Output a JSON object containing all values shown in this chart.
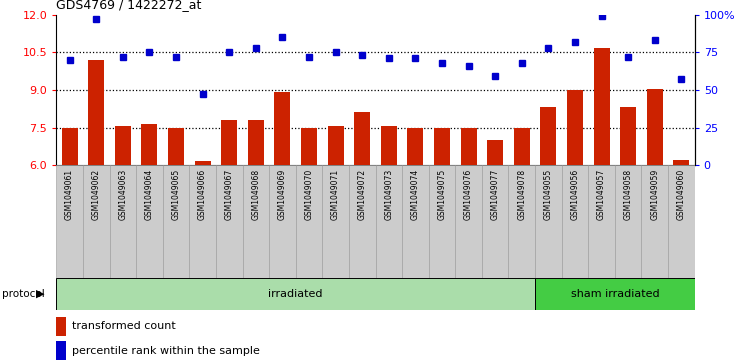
{
  "title": "GDS4769 / 1422272_at",
  "samples": [
    "GSM1049061",
    "GSM1049062",
    "GSM1049063",
    "GSM1049064",
    "GSM1049065",
    "GSM1049066",
    "GSM1049067",
    "GSM1049068",
    "GSM1049069",
    "GSM1049070",
    "GSM1049071",
    "GSM1049072",
    "GSM1049073",
    "GSM1049074",
    "GSM1049075",
    "GSM1049076",
    "GSM1049077",
    "GSM1049078",
    "GSM1049055",
    "GSM1049056",
    "GSM1049057",
    "GSM1049058",
    "GSM1049059",
    "GSM1049060"
  ],
  "bar_values": [
    7.5,
    10.2,
    7.55,
    7.65,
    7.5,
    6.15,
    7.8,
    7.8,
    8.9,
    7.5,
    7.55,
    8.1,
    7.55,
    7.5,
    7.5,
    7.5,
    7.0,
    7.5,
    8.3,
    9.0,
    10.65,
    8.3,
    9.05,
    6.2
  ],
  "dot_values": [
    70,
    97,
    72,
    75,
    72,
    47,
    75,
    78,
    85,
    72,
    75,
    73,
    71,
    71,
    68,
    66,
    59,
    68,
    78,
    82,
    99,
    72,
    83,
    57
  ],
  "ylim_left": [
    6,
    12
  ],
  "ylim_right": [
    0,
    100
  ],
  "yticks_left": [
    6,
    7.5,
    9,
    10.5,
    12
  ],
  "yticks_right": [
    0,
    25,
    50,
    75,
    100
  ],
  "ytick_labels_right": [
    "0",
    "25",
    "50",
    "75",
    "100%"
  ],
  "bar_color": "#CC2200",
  "dot_color": "#0000CC",
  "hline_values": [
    7.5,
    9.0,
    10.5
  ],
  "irradiated_count": 18,
  "sham_count": 6,
  "protocol_label": "protocol",
  "irradiated_label": "irradiated",
  "sham_label": "sham irradiated",
  "legend1": "transformed count",
  "legend2": "percentile rank within the sample",
  "irradiated_color": "#AADDAA",
  "sham_color": "#44CC44",
  "xtick_bg_color": "#CCCCCC",
  "xtick_border_color": "#999999"
}
